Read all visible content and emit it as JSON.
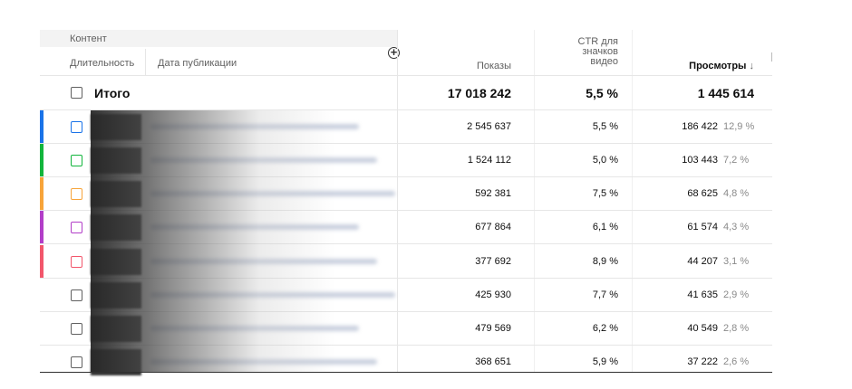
{
  "header": {
    "group_label": "Контент",
    "sub_duration": "Длительность",
    "sub_date": "Дата публикации",
    "add_column_icon": "plus-circle-icon",
    "col_impressions": "Показы",
    "col_ctr_line1": "CTR для",
    "col_ctr_line2": "значков",
    "col_ctr_line3": "видео",
    "col_views": "Просмотры",
    "sort_icon": "arrow-down-icon",
    "sort_glyph": "↓"
  },
  "total": {
    "label": "Итого",
    "impressions": "17 018 242",
    "ctr": "5,5 %",
    "views": "1 445 614"
  },
  "rows": [
    {
      "impressions": "2 545 637",
      "ctr": "5,5 %",
      "views": "186 422",
      "share": "12,9 %",
      "color": "#1a73e8"
    },
    {
      "impressions": "1 524 112",
      "ctr": "5,0 %",
      "views": "103 443",
      "share": "7,2 %",
      "color": "#12b53c"
    },
    {
      "impressions": "592 381",
      "ctr": "7,5 %",
      "views": "68 625",
      "share": "4,8 %",
      "color": "#f7a43a"
    },
    {
      "impressions": "677 864",
      "ctr": "6,1 %",
      "views": "61 574",
      "share": "4,3 %",
      "color": "#b23ec8"
    },
    {
      "impressions": "377 692",
      "ctr": "8,9 %",
      "views": "44 207",
      "share": "3,1 %",
      "color": "#f2566b"
    },
    {
      "impressions": "425 930",
      "ctr": "7,7 %",
      "views": "41 635",
      "share": "2,9 %",
      "color": ""
    },
    {
      "impressions": "479 569",
      "ctr": "6,2 %",
      "views": "40 549",
      "share": "2,8 %",
      "color": ""
    },
    {
      "impressions": "368 651",
      "ctr": "5,9 %",
      "views": "37 222",
      "share": "2,6 %",
      "color": ""
    }
  ]
}
